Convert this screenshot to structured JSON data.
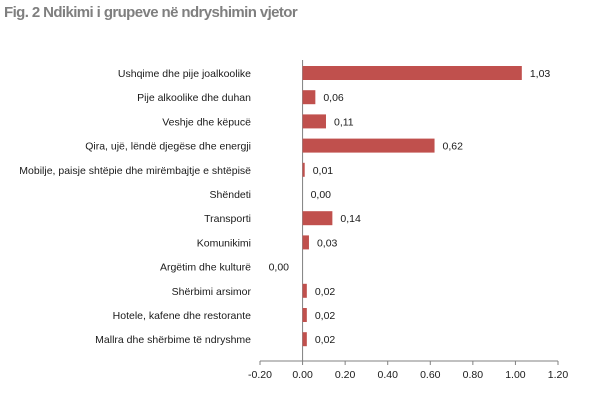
{
  "title": "Fig. 2 Ndikimi i grupeve në ndryshimin vjetor",
  "colors": {
    "bar": "#c0504d",
    "axis": "#808080"
  },
  "chart_data": {
    "type": "bar",
    "orientation": "horizontal",
    "categories": [
      "Ushqime dhe pije joalkoolike",
      "Pije alkoolike dhe duhan",
      "Veshje dhe këpucë",
      "Qira, ujë, lëndë djegëse dhe energji",
      "Mobilje, paisje shtëpie dhe mirëmbajtje e shtëpisë",
      "Shëndeti",
      "Transporti",
      "Komunikimi",
      "Argëtim dhe kulturë",
      "Shërbimi arsimor",
      "Hotele, kafene dhe restorante",
      "Mallra dhe shërbime të ndryshme"
    ],
    "values": [
      1.03,
      0.06,
      0.11,
      0.62,
      0.01,
      0.0,
      0.14,
      0.03,
      0.0,
      0.02,
      0.02,
      0.02
    ],
    "value_labels": [
      "1,03",
      "0,06",
      "0,11",
      "0,62",
      "0,01",
      "0,00",
      "0,14",
      "0,03",
      "0,00",
      "0,02",
      "0,02",
      "0,02"
    ],
    "xlim": [
      -0.2,
      1.2
    ],
    "xticks": [
      -0.2,
      0,
      0.2,
      0.4,
      0.6,
      0.8,
      1.0,
      1.2
    ],
    "xtick_labels": [
      "-0.20",
      "0.00",
      "0.20",
      "0.40",
      "0.60",
      "0.80",
      "1.00",
      "1.20"
    ],
    "grid": false,
    "legend": "none"
  }
}
